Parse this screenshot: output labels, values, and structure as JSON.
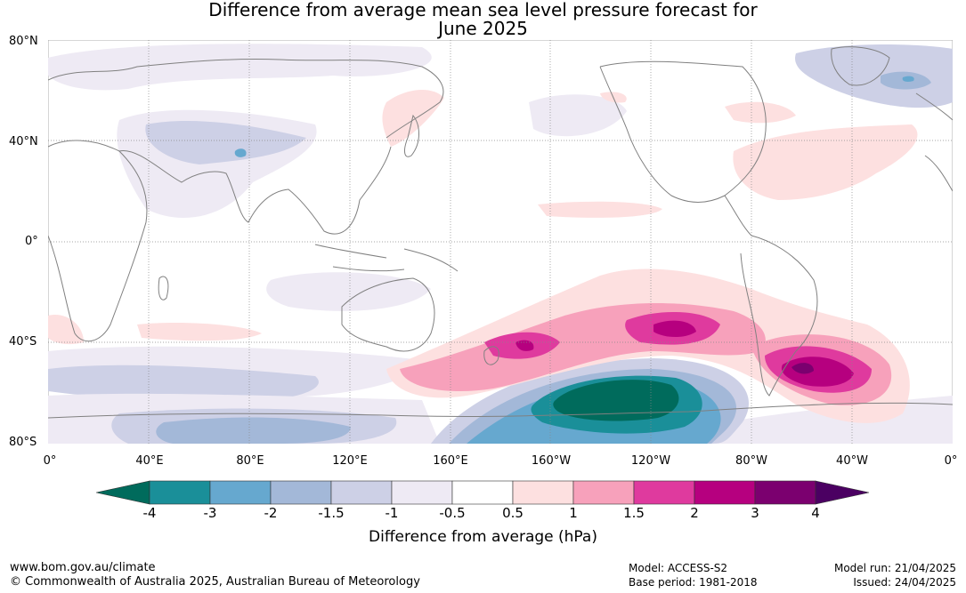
{
  "title": {
    "line1": "Difference from average mean sea level pressure forecast for",
    "line2": "June 2025"
  },
  "lat_labels": [
    "80°N",
    "40°N",
    "0°",
    "40°S",
    "80°S"
  ],
  "lon_labels": [
    "0°",
    "40°E",
    "80°E",
    "120°E",
    "160°E",
    "160°W",
    "120°W",
    "80°W",
    "40°W",
    "0°"
  ],
  "colorbar": {
    "ticks": [
      "-4",
      "-3",
      "-2",
      "-1.5",
      "-1",
      "-0.5",
      "0.5",
      "1",
      "1.5",
      "2",
      "3",
      "4"
    ],
    "colors": [
      "#006b5c",
      "#1a8f99",
      "#66a8cf",
      "#a3b8d8",
      "#cdd0e6",
      "#eeeaf4",
      "#ffffff",
      "#fde0e0",
      "#f7a1bb",
      "#df3a9e",
      "#b6007f",
      "#7b006f",
      "#4b0062"
    ],
    "label": "Difference from average (hPa)"
  },
  "footer": {
    "website": "www.bom.gov.au/climate",
    "copyright": "© Commonwealth of Australia 2025, Australian Bureau of Meteorology",
    "model": "Model: ACCESS-S2",
    "base_period": "Base period: 1981-2018",
    "model_run": "Model run: 21/04/2025",
    "issued": "Issued: 24/04/2025"
  }
}
